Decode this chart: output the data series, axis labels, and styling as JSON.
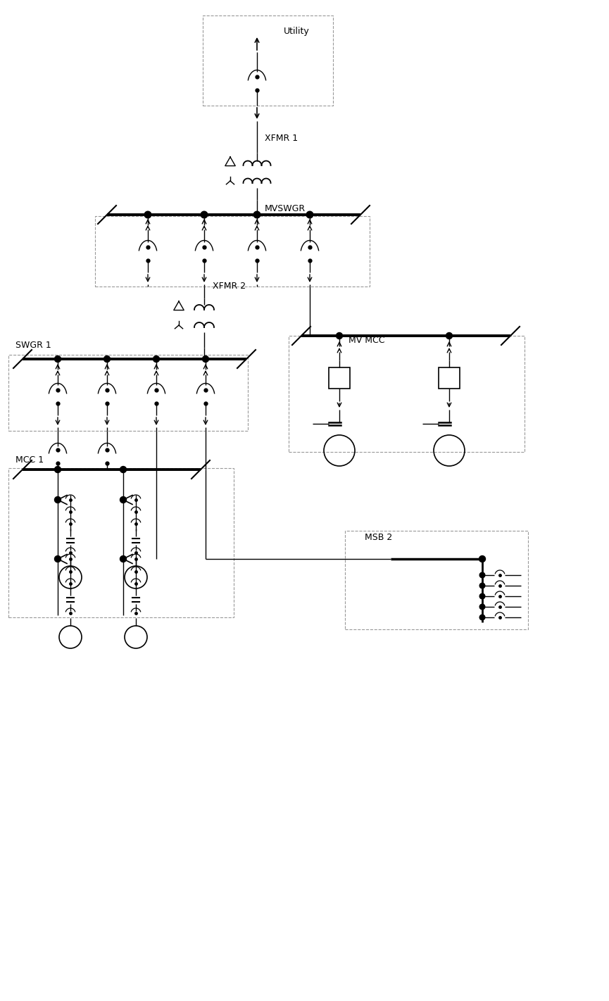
{
  "fig_width": 8.65,
  "fig_height": 14.22,
  "dpi": 100,
  "bg_color": "white",
  "line_color": "black",
  "dash_color": "#999999",
  "labels": {
    "utility": "Utility",
    "xfmr1": "XFMR 1",
    "mvswgr": "MVSWGR",
    "xfmr2": "XFMR 2",
    "swgr1": "SWGR 1",
    "mv_mcc": "MV MCC",
    "mcc1": "MCC 1",
    "msb2": "MSB 2"
  }
}
